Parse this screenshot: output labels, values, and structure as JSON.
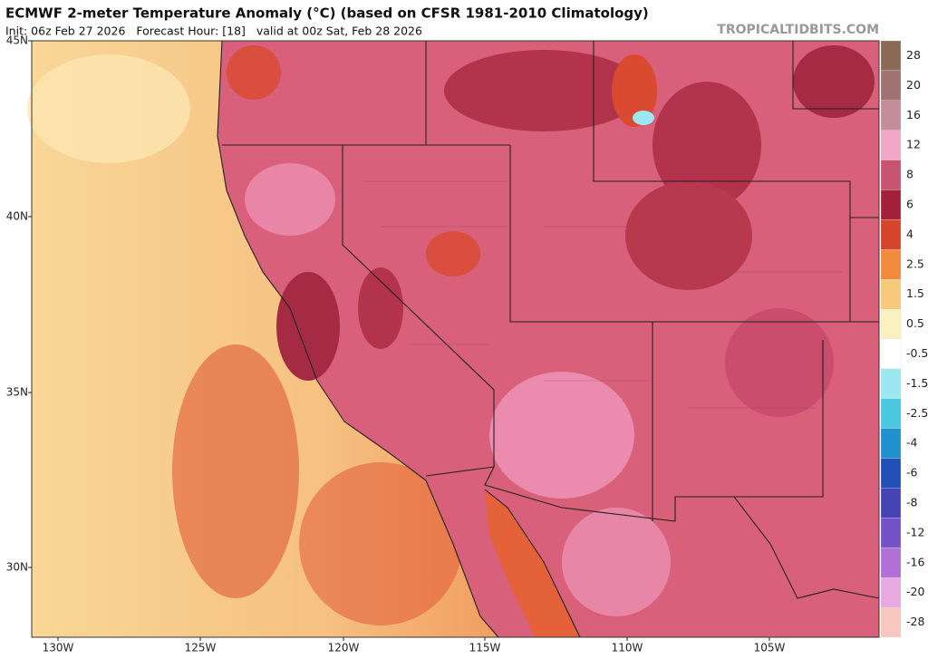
{
  "header": {
    "title": "ECMWF 2-meter Temperature Anomaly (°C) (based on CFSR 1981-2010 Climatology)",
    "subtitle": "Init: 06z Feb 27 2026   Forecast Hour: [18]   valid at 00z Sat, Feb 28 2026",
    "watermark": "TROPICALTIDBITS.COM"
  },
  "map": {
    "lat_labels": [
      "45N",
      "40N",
      "35N",
      "30N"
    ],
    "lon_labels": [
      "130W",
      "125W",
      "120W",
      "115W",
      "110W",
      "105W"
    ]
  },
  "colorbar": {
    "labels": [
      "28",
      "20",
      "16",
      "12",
      "8",
      "6",
      "4",
      "2.5",
      "1.5",
      "0.5",
      "-0.5",
      "-1.5",
      "-2.5",
      "-4",
      "-6",
      "-8",
      "-12",
      "-16",
      "-20",
      "-28"
    ],
    "colors": [
      "#8a6a55",
      "#a07272",
      "#c38d9c",
      "#f2a7c8",
      "#c9546f",
      "#a3213b",
      "#d6442c",
      "#f08a3c",
      "#f7c97b",
      "#fbf0c0",
      "#ffffff",
      "#9ce8f0",
      "#4cc8e0",
      "#2090d0",
      "#2050b8",
      "#4444b4",
      "#7452c8",
      "#b070d8",
      "#e8a8e0",
      "#f8c8c0"
    ]
  }
}
